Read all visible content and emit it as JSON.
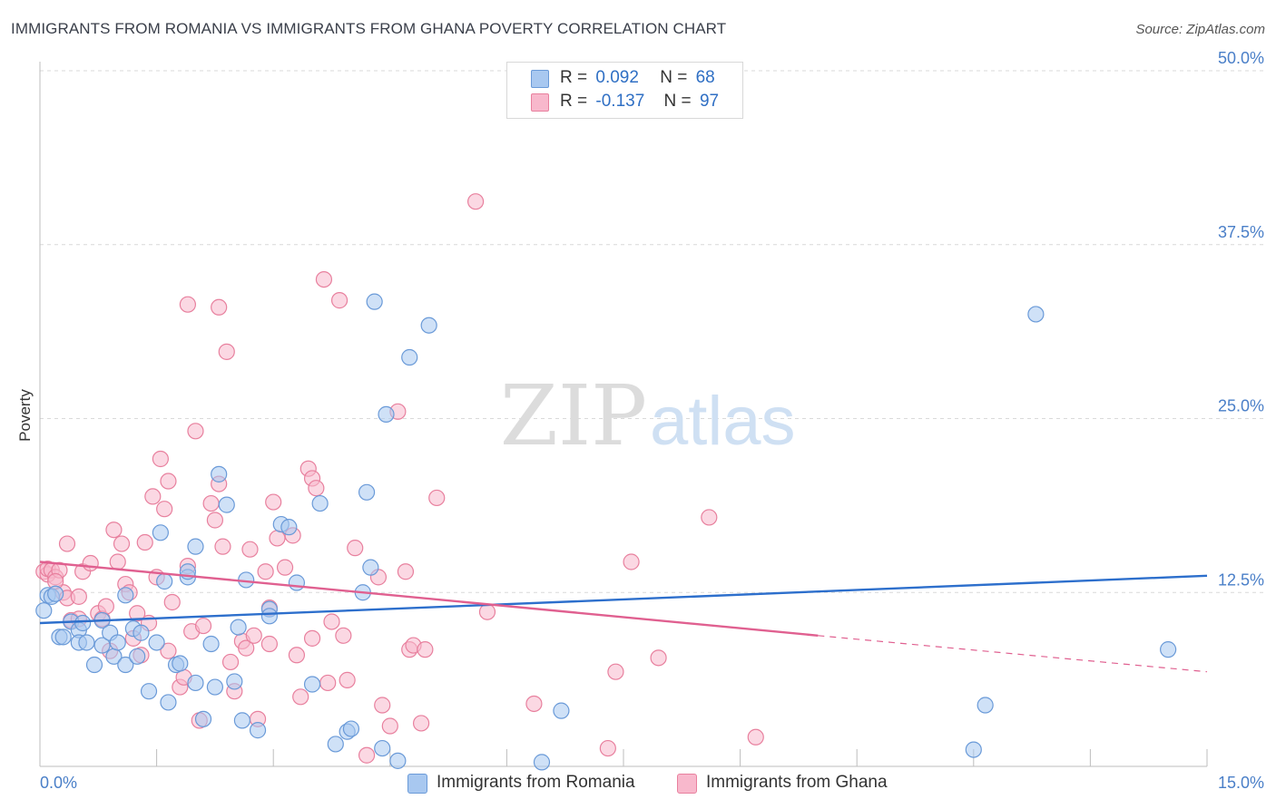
{
  "header": {
    "title": "IMMIGRANTS FROM ROMANIA VS IMMIGRANTS FROM GHANA POVERTY CORRELATION CHART",
    "source": "Source: ZipAtlas.com"
  },
  "watermark": {
    "zip": "ZIP",
    "atlas": "atlas"
  },
  "legend": {
    "romania": {
      "r_label": "R =",
      "r_value": "0.092",
      "n_label": "N =",
      "n_value": "68",
      "color": "#a8c8f0"
    },
    "ghana": {
      "r_label": "R =",
      "r_value": "-0.137",
      "n_label": "N =",
      "n_value": "97",
      "color": "#f8b8cc"
    }
  },
  "bottom_legend": {
    "romania": "Immigrants from Romania",
    "ghana": "Immigrants from Ghana"
  },
  "chart_data": {
    "type": "scatter",
    "title": "IMMIGRANTS FROM ROMANIA VS IMMIGRANTS FROM GHANA POVERTY CORRELATION CHART",
    "xlabel": "",
    "ylabel": "Poverty",
    "xlim": [
      0,
      15
    ],
    "ylim": [
      0,
      50
    ],
    "x_tick_labels": [
      "0.0%",
      "15.0%"
    ],
    "y_ticks": [
      12.5,
      25.0,
      37.5,
      50.0
    ],
    "y_tick_labels": [
      "12.5%",
      "25.0%",
      "37.5%",
      "50.0%"
    ],
    "grid": true,
    "series": [
      {
        "name": "Immigrants from Romania",
        "color": "#a8c8f0",
        "stroke": "#6a9ad8",
        "trend_color": "#2d6fcc",
        "trend": {
          "x0": 0.0,
          "y0": 10.3,
          "x1": 15.0,
          "y1": 13.7
        },
        "points": [
          [
            0.1,
            12.3
          ],
          [
            0.15,
            12.2
          ],
          [
            0.2,
            12.4
          ],
          [
            0.25,
            9.3
          ],
          [
            0.3,
            9.3
          ],
          [
            0.4,
            10.4
          ],
          [
            0.5,
            9.8
          ],
          [
            0.5,
            8.9
          ],
          [
            0.6,
            8.9
          ],
          [
            0.7,
            7.3
          ],
          [
            0.8,
            8.7
          ],
          [
            0.8,
            10.5
          ],
          [
            0.9,
            9.6
          ],
          [
            0.95,
            7.9
          ],
          [
            1.0,
            8.9
          ],
          [
            1.1,
            12.3
          ],
          [
            1.1,
            7.3
          ],
          [
            1.2,
            9.9
          ],
          [
            1.25,
            7.9
          ],
          [
            1.3,
            9.6
          ],
          [
            1.4,
            5.4
          ],
          [
            1.5,
            8.9
          ],
          [
            1.55,
            16.8
          ],
          [
            1.6,
            13.3
          ],
          [
            1.65,
            4.6
          ],
          [
            1.75,
            7.3
          ],
          [
            1.8,
            7.4
          ],
          [
            1.9,
            13.6
          ],
          [
            1.9,
            14.0
          ],
          [
            2.0,
            15.8
          ],
          [
            2.0,
            6.0
          ],
          [
            2.1,
            3.4
          ],
          [
            2.2,
            8.8
          ],
          [
            2.25,
            5.7
          ],
          [
            2.3,
            21.0
          ],
          [
            2.4,
            18.8
          ],
          [
            2.5,
            6.1
          ],
          [
            2.55,
            10.0
          ],
          [
            2.6,
            3.3
          ],
          [
            2.65,
            13.4
          ],
          [
            2.8,
            2.6
          ],
          [
            2.95,
            11.3
          ],
          [
            2.95,
            10.8
          ],
          [
            3.1,
            17.4
          ],
          [
            3.2,
            17.2
          ],
          [
            3.3,
            13.2
          ],
          [
            3.5,
            5.9
          ],
          [
            3.6,
            18.9
          ],
          [
            3.8,
            1.6
          ],
          [
            3.95,
            2.5
          ],
          [
            4.0,
            2.7
          ],
          [
            4.15,
            12.5
          ],
          [
            4.2,
            19.7
          ],
          [
            4.25,
            14.3
          ],
          [
            4.3,
            33.4
          ],
          [
            4.4,
            1.3
          ],
          [
            4.45,
            25.3
          ],
          [
            4.6,
            0.4
          ],
          [
            4.75,
            29.4
          ],
          [
            5.0,
            31.7
          ],
          [
            6.45,
            0.3
          ],
          [
            6.7,
            4.0
          ],
          [
            12.0,
            1.2
          ],
          [
            12.15,
            4.4
          ],
          [
            12.8,
            32.5
          ],
          [
            14.5,
            8.4
          ],
          [
            0.05,
            11.2
          ],
          [
            0.55,
            10.3
          ]
        ]
      },
      {
        "name": "Immigrants from Ghana",
        "color": "#f8b8cc",
        "stroke": "#e8809e",
        "trend_color": "#e06090",
        "trend": {
          "x0": 0.0,
          "y0": 14.7,
          "x1": 10.0,
          "y1": 9.4
        },
        "trend_dashed": {
          "x0": 10.0,
          "y0": 9.4,
          "x1": 15.0,
          "y1": 6.8
        },
        "points": [
          [
            0.05,
            14.0
          ],
          [
            0.1,
            13.8
          ],
          [
            0.1,
            14.2
          ],
          [
            0.15,
            14.1
          ],
          [
            0.2,
            13.6
          ],
          [
            0.25,
            14.1
          ],
          [
            0.3,
            12.5
          ],
          [
            0.35,
            12.1
          ],
          [
            0.35,
            16.0
          ],
          [
            0.4,
            10.5
          ],
          [
            0.5,
            10.6
          ],
          [
            0.5,
            12.2
          ],
          [
            0.55,
            14.0
          ],
          [
            0.65,
            14.6
          ],
          [
            0.75,
            11.0
          ],
          [
            0.8,
            10.6
          ],
          [
            0.85,
            11.5
          ],
          [
            0.9,
            8.3
          ],
          [
            0.95,
            17.0
          ],
          [
            1.0,
            14.7
          ],
          [
            1.05,
            16.0
          ],
          [
            1.1,
            13.1
          ],
          [
            1.15,
            12.5
          ],
          [
            1.2,
            9.2
          ],
          [
            1.25,
            11.0
          ],
          [
            1.3,
            8.0
          ],
          [
            1.35,
            16.1
          ],
          [
            1.4,
            10.3
          ],
          [
            1.45,
            19.4
          ],
          [
            1.5,
            13.6
          ],
          [
            1.55,
            22.1
          ],
          [
            1.6,
            18.5
          ],
          [
            1.65,
            8.3
          ],
          [
            1.65,
            20.5
          ],
          [
            1.7,
            11.8
          ],
          [
            1.8,
            5.7
          ],
          [
            1.85,
            6.4
          ],
          [
            1.9,
            33.2
          ],
          [
            1.9,
            14.4
          ],
          [
            1.95,
            9.7
          ],
          [
            2.0,
            24.1
          ],
          [
            2.05,
            3.3
          ],
          [
            2.1,
            10.1
          ],
          [
            2.2,
            18.9
          ],
          [
            2.25,
            17.7
          ],
          [
            2.3,
            33.0
          ],
          [
            2.3,
            20.3
          ],
          [
            2.35,
            15.8
          ],
          [
            2.4,
            29.8
          ],
          [
            2.45,
            7.5
          ],
          [
            2.5,
            5.4
          ],
          [
            2.6,
            9.0
          ],
          [
            2.65,
            8.5
          ],
          [
            2.7,
            15.6
          ],
          [
            2.75,
            9.4
          ],
          [
            2.8,
            3.4
          ],
          [
            2.9,
            14.0
          ],
          [
            2.95,
            11.4
          ],
          [
            2.95,
            8.8
          ],
          [
            3.0,
            19.0
          ],
          [
            3.05,
            16.4
          ],
          [
            3.15,
            14.3
          ],
          [
            3.25,
            16.6
          ],
          [
            3.3,
            8.0
          ],
          [
            3.35,
            5.0
          ],
          [
            3.45,
            21.4
          ],
          [
            3.5,
            9.2
          ],
          [
            3.5,
            20.7
          ],
          [
            3.55,
            20.0
          ],
          [
            3.65,
            35.0
          ],
          [
            3.7,
            6.0
          ],
          [
            3.75,
            10.4
          ],
          [
            3.85,
            33.5
          ],
          [
            3.9,
            9.4
          ],
          [
            3.95,
            6.2
          ],
          [
            4.05,
            15.7
          ],
          [
            4.2,
            0.8
          ],
          [
            4.35,
            13.6
          ],
          [
            4.4,
            4.4
          ],
          [
            4.5,
            2.9
          ],
          [
            4.6,
            25.5
          ],
          [
            4.7,
            14.0
          ],
          [
            4.75,
            8.4
          ],
          [
            4.8,
            8.7
          ],
          [
            4.9,
            3.1
          ],
          [
            4.95,
            8.4
          ],
          [
            5.1,
            19.3
          ],
          [
            5.6,
            40.6
          ],
          [
            5.75,
            11.1
          ],
          [
            6.35,
            4.5
          ],
          [
            7.3,
            1.3
          ],
          [
            7.4,
            6.8
          ],
          [
            7.6,
            14.7
          ],
          [
            7.95,
            7.8
          ],
          [
            8.6,
            17.9
          ],
          [
            9.2,
            2.1
          ],
          [
            0.2,
            13.3
          ]
        ]
      }
    ]
  }
}
